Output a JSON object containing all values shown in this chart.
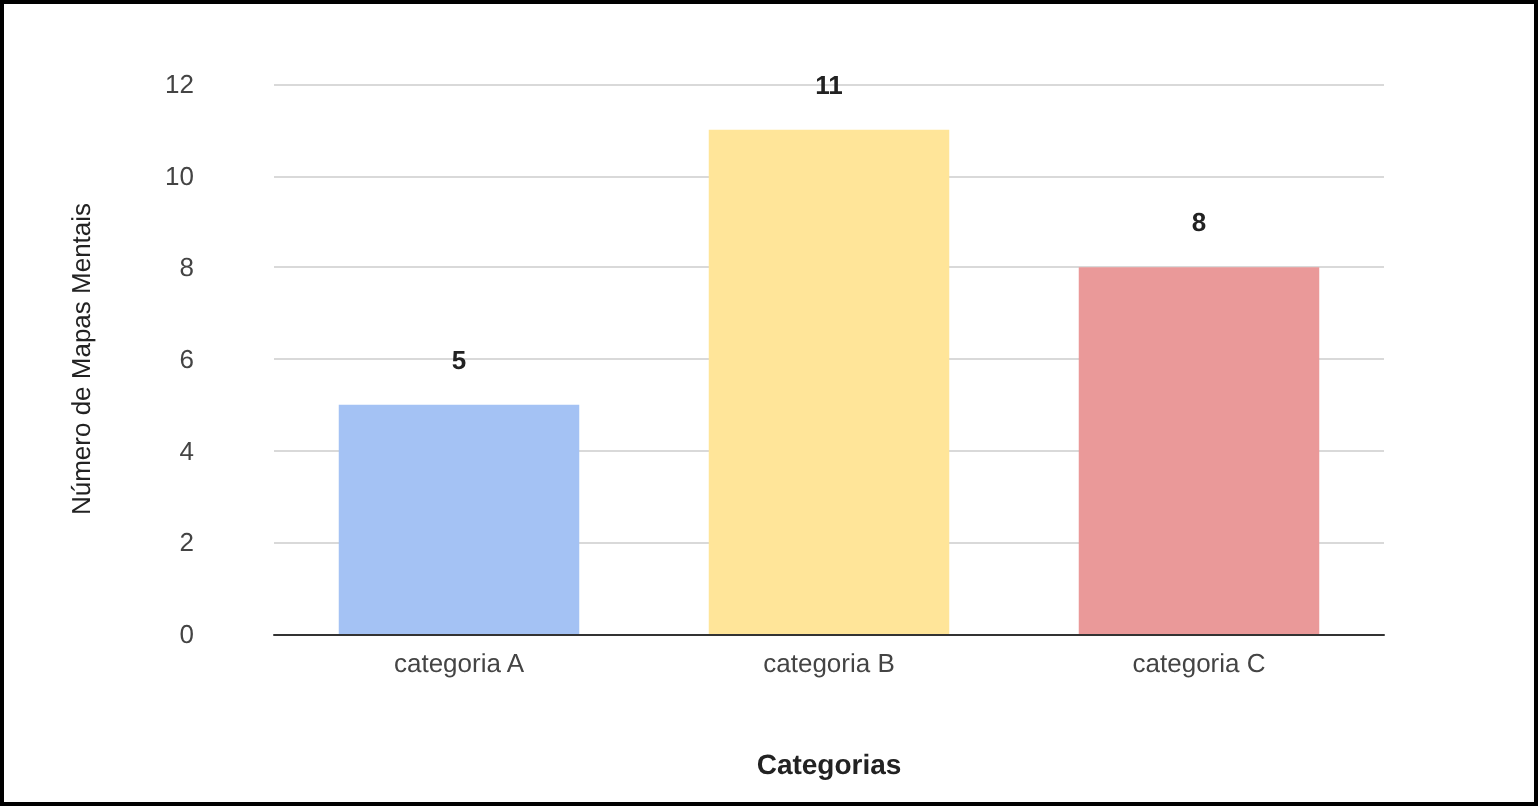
{
  "chart_data": {
    "type": "bar",
    "xlabel": "Categorias",
    "ylabel": "Número de Mapas Mentais",
    "categories": [
      "categoria A",
      "categoria B",
      "categoria C"
    ],
    "values": [
      5,
      11,
      8
    ],
    "colors": [
      "#a4c2f4",
      "#ffe599",
      "#ea9999"
    ],
    "ylim": [
      0,
      12
    ],
    "yticks": [
      0,
      2,
      4,
      6,
      8,
      10,
      12
    ],
    "grid": "y",
    "data_labels": true
  }
}
